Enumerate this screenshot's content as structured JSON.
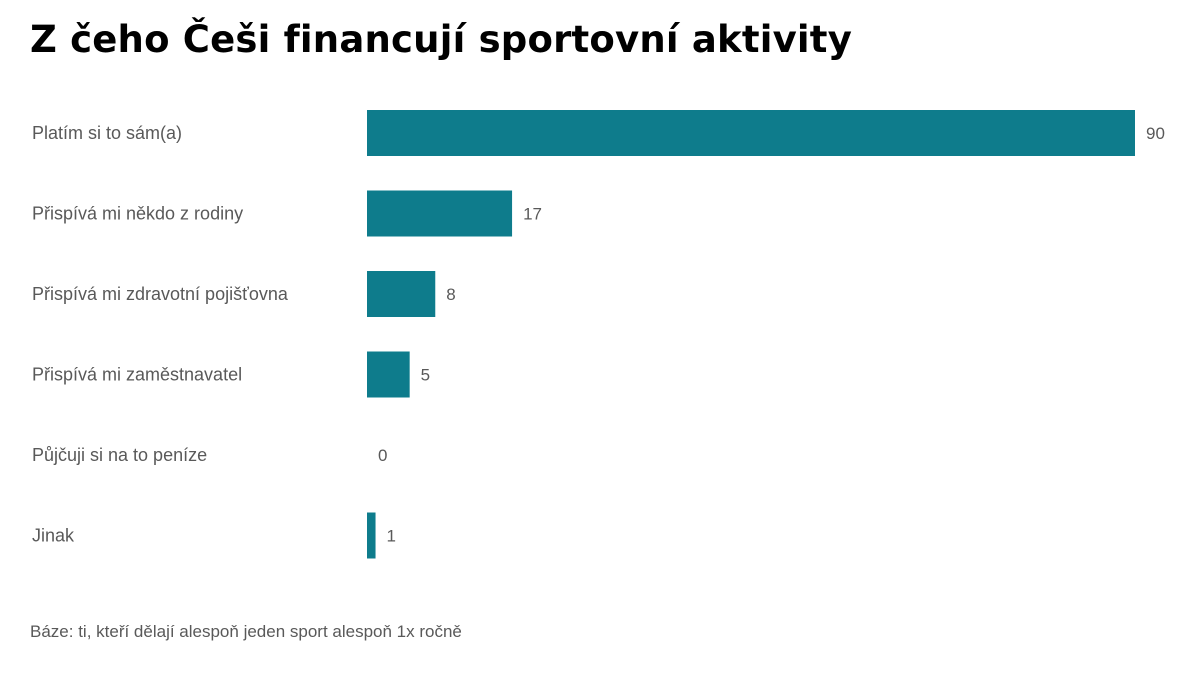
{
  "chart_data": {
    "type": "bar",
    "orientation": "horizontal",
    "title": "Z čeho Češi financují sportovní aktivity",
    "categories": [
      "Platím si to sám(a)",
      "Přispívá mi někdo z rodiny",
      "Přispívá mi zdravotní pojišťovna",
      "Přispívá mi zaměstnavatel",
      "Půjčuji si na to peníze",
      "Jinak"
    ],
    "values": [
      90,
      17,
      8,
      5,
      0,
      1
    ],
    "xlim": [
      0,
      90
    ],
    "grid": false,
    "data_labels": true,
    "bar_color": "#0e7c8c",
    "note": "Báze: ti, kteří dělají alespoň jeden sport alespoň 1x ročně"
  }
}
